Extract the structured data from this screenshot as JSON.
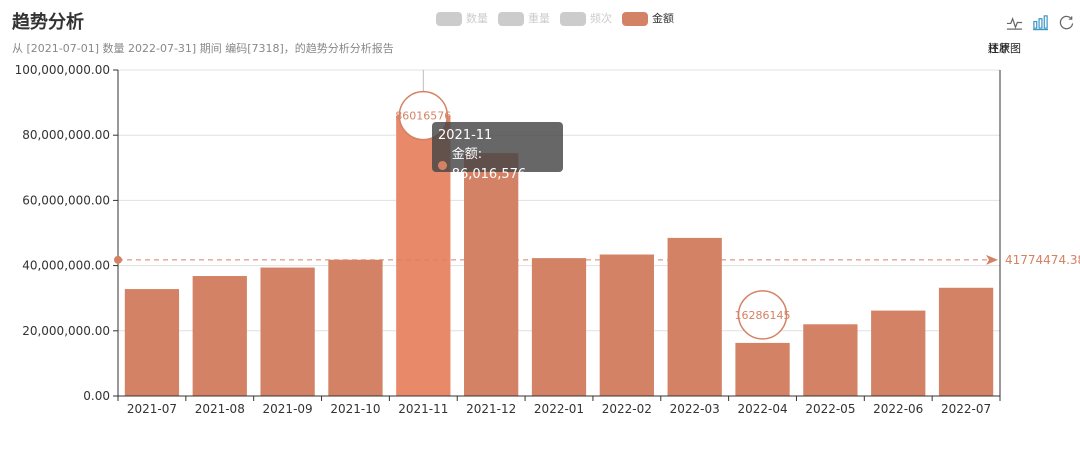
{
  "header": {
    "title": "趋势分析",
    "subtitle": "从 [2021-07-01] 数量 2022-07-31] 期间 编码[7318]，的趋势分析分析报告"
  },
  "legend": [
    {
      "label": "数量",
      "color": "#cccccc",
      "active": false
    },
    {
      "label": "重量",
      "color": "#cccccc",
      "active": false
    },
    {
      "label": "频次",
      "color": "#cccccc",
      "active": false
    },
    {
      "label": "金额",
      "color": "#d48265",
      "active": true
    }
  ],
  "toolbox": {
    "icons": [
      "line-chart-icon",
      "bar-chart-icon",
      "restore-icon"
    ],
    "labels": [
      "柱状图",
      "还原"
    ]
  },
  "tooltip": {
    "title": "2021-11",
    "series_label": "金额: 86,016,576",
    "color": "#d48265"
  },
  "chart_data": {
    "type": "bar",
    "categories": [
      "2021-07",
      "2021-08",
      "2021-09",
      "2021-10",
      "2021-11",
      "2021-12",
      "2022-01",
      "2022-02",
      "2022-03",
      "2022-04",
      "2022-05",
      "2022-06",
      "2022-07"
    ],
    "series": [
      {
        "name": "金额",
        "color": "#d48265",
        "values": [
          32800000,
          36800000,
          39400000,
          41800000,
          86016576,
          74500000,
          42300000,
          43400000,
          48500000,
          16286145,
          22000000,
          26200000,
          33200000
        ]
      }
    ],
    "yticks": [
      "0.00",
      "20,000,000.00",
      "40,000,000.00",
      "60,000,000.00",
      "80,000,000.00",
      "100,000,000.00"
    ],
    "ylim": [
      0,
      100000000
    ],
    "mark_points": [
      {
        "label": "86016576",
        "index": 4,
        "value": 86016576
      },
      {
        "label": "16286145",
        "index": 9,
        "value": 16286145
      }
    ],
    "mark_line": {
      "label": "41774474.38",
      "value": 41774474.38
    },
    "highlight_index": 4,
    "highlight_color": "#e8896a",
    "grid": true
  }
}
